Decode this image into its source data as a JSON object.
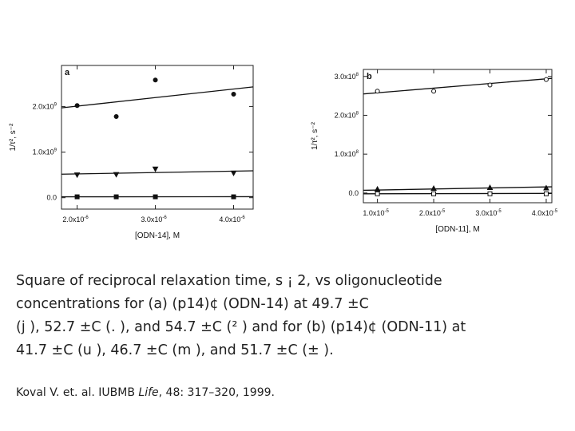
{
  "chart_data": [
    {
      "id": "a",
      "type": "scatter",
      "panel_label": "a",
      "xlabel": "[ODN-14], M",
      "ylabel": "1/τ², s⁻²",
      "xlim": [
        1.8e-06,
        4.25e-06
      ],
      "ylim": [
        -250000000.0,
        2900000000.0
      ],
      "x_ticks": [
        {
          "value": 2e-06,
          "label": "2.0x10",
          "exp": "-6"
        },
        {
          "value": 3e-06,
          "label": "3.0x10",
          "exp": "-6"
        },
        {
          "value": 4e-06,
          "label": "4.0x10",
          "exp": "-6"
        }
      ],
      "y_ticks": [
        {
          "value": 0,
          "label": "0.0",
          "exp": ""
        },
        {
          "value": 1000000000.0,
          "label": "1.0x10",
          "exp": "9"
        },
        {
          "value": 2000000000.0,
          "label": "2.0x10",
          "exp": "9"
        }
      ],
      "series": [
        {
          "marker": "circle",
          "fill": "#111111",
          "x": [
            2e-06,
            2.5e-06,
            3e-06,
            4e-06
          ],
          "y": [
            2020000000.0,
            1780000000.0,
            2580000000.0,
            2270000000.0
          ],
          "fit": [
            [
              1.8e-06,
              1970000000.0
            ],
            [
              4.25e-06,
              2430000000.0
            ]
          ]
        },
        {
          "marker": "triangle-down",
          "fill": "#111111",
          "x": [
            2e-06,
            2.5e-06,
            3e-06,
            4e-06
          ],
          "y": [
            500000000.0,
            510000000.0,
            630000000.0,
            540000000.0
          ],
          "fit": [
            [
              1.8e-06,
              515000000.0
            ],
            [
              4.25e-06,
              590000000.0
            ]
          ]
        },
        {
          "marker": "square",
          "fill": "#111111",
          "x": [
            2e-06,
            2.5e-06,
            3e-06,
            4e-06
          ],
          "y": [
            20000000.0,
            20000000.0,
            20000000.0,
            20000000.0
          ],
          "fit": [
            [
              1.8e-06,
              20000000.0
            ],
            [
              4.25e-06,
              22000000.0
            ]
          ]
        }
      ]
    },
    {
      "id": "b",
      "type": "scatter",
      "panel_label": "b",
      "xlabel": "[ODN-11], M",
      "ylabel": "1/τ², s⁻²",
      "xlim": [
        7.5e-06,
        4.1e-05
      ],
      "ylim": [
        -25000000.0,
        318000000.0
      ],
      "x_ticks": [
        {
          "value": 1e-05,
          "label": "1.0x10",
          "exp": "-5"
        },
        {
          "value": 2e-05,
          "label": "2.0x10",
          "exp": "-5"
        },
        {
          "value": 3e-05,
          "label": "3.0x10",
          "exp": "-5"
        },
        {
          "value": 4e-05,
          "label": "4.0x10",
          "exp": "-5"
        }
      ],
      "y_ticks": [
        {
          "value": 0,
          "label": "0.0",
          "exp": ""
        },
        {
          "value": 100000000.0,
          "label": "1.0x10",
          "exp": "8"
        },
        {
          "value": 200000000.0,
          "label": "2.0x10",
          "exp": "8"
        },
        {
          "value": 300000000.0,
          "label": "3.0x10",
          "exp": "8"
        }
      ],
      "series": [
        {
          "marker": "circle",
          "fill": "#ffffff",
          "x": [
            1e-05,
            2e-05,
            3e-05,
            4e-05
          ],
          "y": [
            262000000.0,
            262000000.0,
            278000000.0,
            292000000.0
          ],
          "fit": [
            [
              7.5e-06,
              255000000.0
            ],
            [
              4.1e-05,
              295000000.0
            ]
          ]
        },
        {
          "marker": "triangle-up",
          "fill": "#111111",
          "x": [
            1e-05,
            2e-05,
            3e-05,
            4e-05
          ],
          "y": [
            10000000.0,
            12000000.0,
            14000000.0,
            13000000.0
          ],
          "fit": [
            [
              7.5e-06,
              7000000.0
            ],
            [
              4.1e-05,
              16000000.0
            ]
          ]
        },
        {
          "marker": "square",
          "fill": "#ffffff",
          "x": [
            1e-05,
            2e-05,
            3e-05,
            4e-05
          ],
          "y": [
            -2000000.0,
            -2000000.0,
            -2000000.0,
            -2000000.0
          ],
          "fit": [
            [
              7.5e-06,
              -2000000.0
            ],
            [
              4.1e-05,
              -1000000.0
            ]
          ]
        }
      ]
    }
  ],
  "caption": {
    "lines": [
      "Square of reciprocal relaxation time, s ¡ 2, vs oligonucleotide",
      "concentrations for (a) (p14)¢ (ODN-14) at 49.7 ±C",
      "(j ), 52.7 ±C (. ), and 54.7 ±C (² ) and for (b) (p14)¢ (ODN-11) at",
      "41.7 ±C (u ), 46.7 ±C (m ), and 51.7 ±C (± )."
    ]
  },
  "citation": {
    "before": "Koval V. et. al. IUBMB ",
    "journal": "Life",
    "after": ", 48: 317–320, 1999."
  }
}
